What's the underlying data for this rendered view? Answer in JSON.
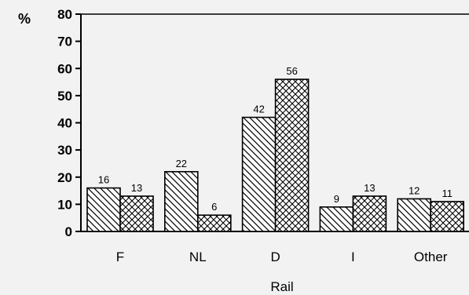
{
  "chart_data": {
    "type": "bar",
    "title": "",
    "xlabel": "Rail",
    "ylabel": "%",
    "ylim": [
      0,
      80
    ],
    "yticks": [
      0,
      10,
      20,
      30,
      40,
      50,
      60,
      70,
      80
    ],
    "categories": [
      "F",
      "NL",
      "D",
      "I",
      "Other"
    ],
    "series": [
      {
        "pattern": "diagonal-hatch",
        "values": [
          16,
          22,
          42,
          9,
          12
        ]
      },
      {
        "pattern": "cross-hatch",
        "values": [
          13,
          6,
          56,
          13,
          11
        ]
      }
    ],
    "grid": false,
    "legend": "none"
  },
  "colors": {
    "background": "#f2f2f2",
    "ink": "#000000"
  }
}
